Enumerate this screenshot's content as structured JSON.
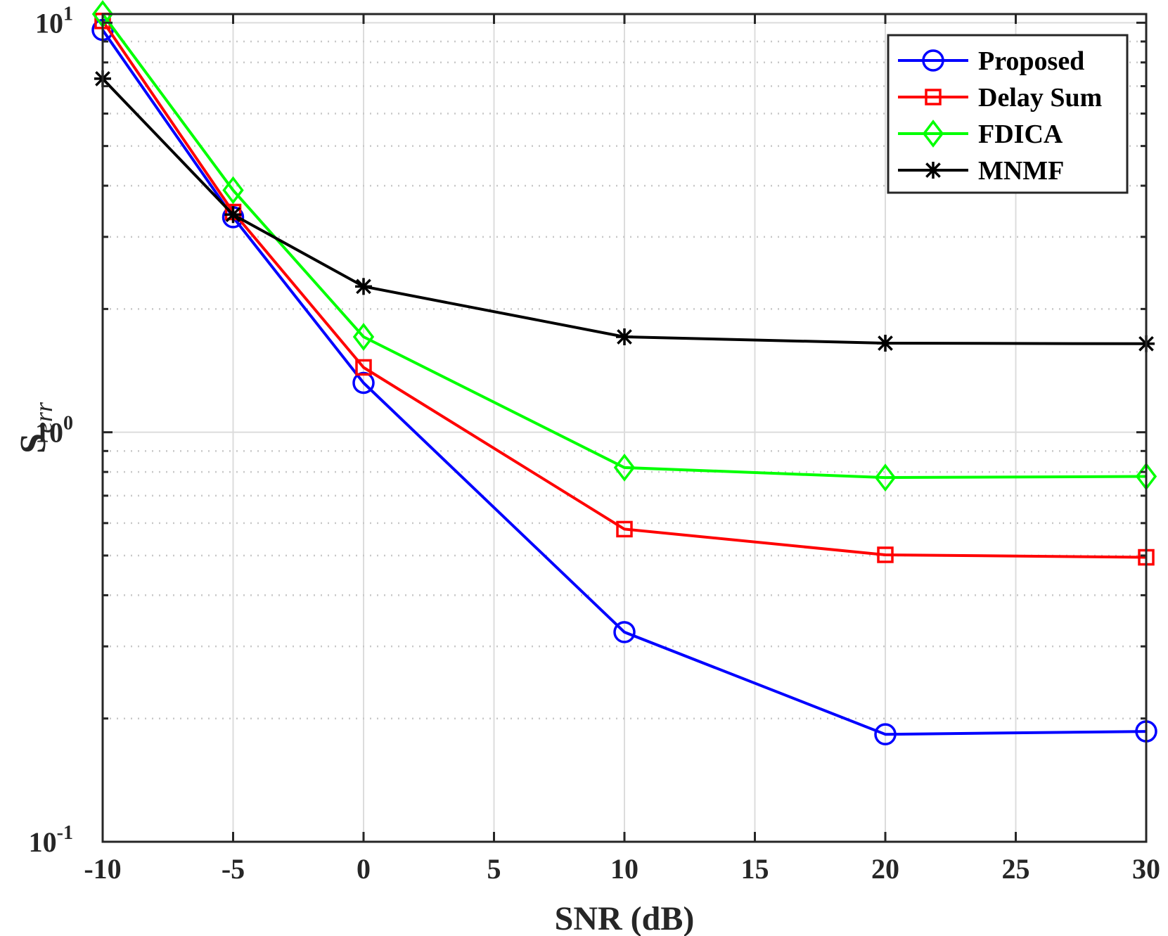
{
  "chart_data": {
    "type": "line",
    "x": [
      -10,
      -5,
      0,
      10,
      20,
      30
    ],
    "x_tick_labels": [
      "-10",
      "-5",
      "0",
      "5",
      "10",
      "15",
      "20",
      "25",
      "30"
    ],
    "x_ticks": [
      -10,
      -5,
      0,
      5,
      10,
      15,
      20,
      25,
      30
    ],
    "y_ticks": [
      {
        "value": 0.1,
        "base": "10",
        "exp": "-1"
      },
      {
        "value": 1,
        "base": "10",
        "exp": "0"
      },
      {
        "value": 10,
        "base": "10",
        "exp": "1"
      }
    ],
    "xlim": [
      -10,
      30
    ],
    "ylim": [
      0.1,
      10.5
    ],
    "yscale": "log",
    "xlabel": "SNR (dB)",
    "ylabel_main": "S",
    "ylabel_sub": "err",
    "grid": true,
    "legend_position": "top-right",
    "series": [
      {
        "name": "Proposed",
        "marker": "circle",
        "color": "#0000ff",
        "values": [
          9.6,
          3.35,
          1.32,
          0.325,
          0.183,
          0.186
        ]
      },
      {
        "name": "Delay Sum",
        "marker": "square",
        "color": "#ff0000",
        "values": [
          10.1,
          3.45,
          1.44,
          0.58,
          0.502,
          0.495
        ]
      },
      {
        "name": "FDICA",
        "marker": "diamond",
        "color": "#00ff00",
        "values": [
          10.5,
          3.9,
          1.71,
          0.82,
          0.775,
          0.78
        ]
      },
      {
        "name": "MNMF",
        "marker": "asterisk",
        "color": "#000000",
        "values": [
          7.3,
          3.4,
          2.27,
          1.71,
          1.65,
          1.645
        ]
      }
    ]
  }
}
